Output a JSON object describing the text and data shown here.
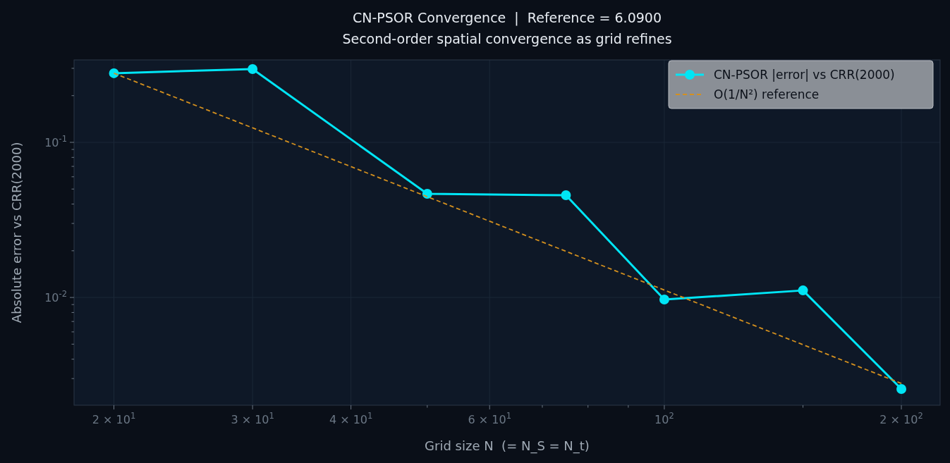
{
  "chart_data": {
    "type": "line",
    "title": "CN-PSOR Convergence  |  Reference = 6.0900",
    "subtitle": "Second-order spatial convergence as grid refines",
    "xlabel": "Grid size N  (= N_S = N_t)",
    "ylabel": "Absolute error vs CRR(2000)",
    "log": "xy",
    "grid": true,
    "legend": "top right",
    "x": [
      20,
      30,
      50,
      75,
      100,
      150,
      200
    ],
    "xlim": [
      17.8,
      224
    ],
    "ylim": [
      0.00202,
      0.34
    ],
    "xticks": [
      {
        "value": 20,
        "label": "2 × 10$^{1}$"
      },
      {
        "value": 30,
        "label": "3 × 10$^{1}$"
      },
      {
        "value": 40,
        "label": "4 × 10$^{1}$"
      },
      {
        "value": 60,
        "label": "6 × 10$^{1}$"
      },
      {
        "value": 100,
        "label": "10$^{2}$"
      },
      {
        "value": 200,
        "label": "2 × 10$^{2}$"
      },
      {
        "value": 50,
        "label": null
      },
      {
        "value": 70,
        "label": null
      },
      {
        "value": 80,
        "label": null
      },
      {
        "value": 90,
        "label": null
      },
      {
        "value": 150,
        "label": null
      }
    ],
    "yticks": [
      {
        "value": 0.1,
        "label": "10$^{-1}$"
      },
      {
        "value": 0.01,
        "label": "10$^{-2}$"
      },
      {
        "value": 0.003,
        "label": null
      },
      {
        "value": 0.004,
        "label": null
      },
      {
        "value": 0.005,
        "label": null
      },
      {
        "value": 0.006,
        "label": null
      },
      {
        "value": 0.007,
        "label": null
      },
      {
        "value": 0.008,
        "label": null
      },
      {
        "value": 0.009,
        "label": null
      },
      {
        "value": 0.02,
        "label": null
      },
      {
        "value": 0.03,
        "label": null
      },
      {
        "value": 0.04,
        "label": null
      },
      {
        "value": 0.05,
        "label": null
      },
      {
        "value": 0.06,
        "label": null
      },
      {
        "value": 0.07,
        "label": null
      },
      {
        "value": 0.08,
        "label": null
      },
      {
        "value": 0.09,
        "label": null
      },
      {
        "value": 0.2,
        "label": null
      },
      {
        "value": 0.3,
        "label": null
      }
    ],
    "series": [
      {
        "name": "CN-PSOR |error| vs CRR(2000)",
        "color": "#00e5f5",
        "marker": "circle",
        "line_style": "solid",
        "values": [
          0.279,
          0.297,
          0.0466,
          0.0456,
          0.0097,
          0.0111,
          0.00257
        ]
      },
      {
        "name": "O(1/N²) reference",
        "type": "line",
        "color": "#d4901e",
        "marker": "none",
        "line_style": "dashed",
        "x": [
          20,
          200
        ],
        "values": [
          0.279,
          0.00279
        ]
      }
    ]
  }
}
